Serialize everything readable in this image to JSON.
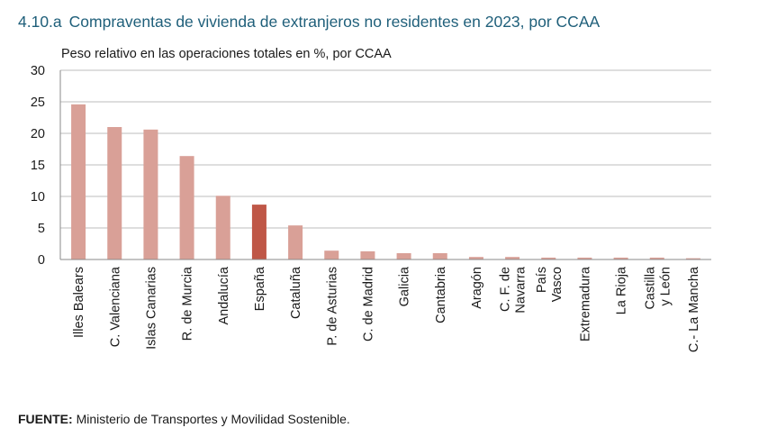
{
  "title": {
    "number": "4.10.a",
    "text": "Compraventas de vivienda de extranjeros no residentes en 2023, por CCAA"
  },
  "source": {
    "label": "FUENTE:",
    "text": "Ministerio de Transportes y Movilidad Sostenible."
  },
  "colors": {
    "bar": "#d9a097",
    "highlight": "#bf5747",
    "grid": "#bdbdbd",
    "title": "#1f5f7a"
  },
  "chart_data": {
    "type": "bar",
    "subtitle": "Peso relativo en las operaciones totales en %, por CCAA",
    "ylim": [
      0,
      30
    ],
    "yticks": [
      0,
      5,
      10,
      15,
      20,
      25,
      30
    ],
    "grid": true,
    "categories": [
      [
        "Illes Balears"
      ],
      [
        "C. Valenciana"
      ],
      [
        "Islas Canarias"
      ],
      [
        "R. de Murcia"
      ],
      [
        "Andalucía"
      ],
      [
        "España"
      ],
      [
        "Cataluña"
      ],
      [
        "P. de Asturias"
      ],
      [
        "C. de Madrid"
      ],
      [
        "Galicia"
      ],
      [
        "Cantabria"
      ],
      [
        "Aragón"
      ],
      [
        "C. F. de",
        "Navarra"
      ],
      [
        "País",
        "Vasco"
      ],
      [
        "Extremadura"
      ],
      [
        "La Rioja"
      ],
      [
        "Castilla",
        "y León"
      ],
      [
        "C.- La Mancha"
      ]
    ],
    "values": [
      24.6,
      21.0,
      20.6,
      16.4,
      10.1,
      8.7,
      5.4,
      1.4,
      1.3,
      1.0,
      1.0,
      0.4,
      0.4,
      0.3,
      0.3,
      0.3,
      0.3,
      0.2
    ],
    "highlight": "España"
  }
}
